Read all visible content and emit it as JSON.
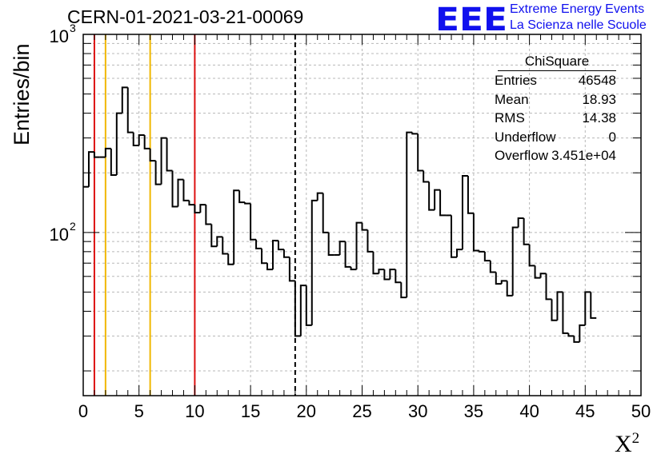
{
  "header": {
    "run_title": "CERN-01-2021-03-21-00069",
    "logo_letters": "EEE",
    "logo_line1": "Extreme Energy Events",
    "logo_line2": "La Scienza nelle Scuole",
    "logo_color": "#1010ee"
  },
  "stats_box": {
    "title": "ChiSquare",
    "rows": [
      {
        "label": "Entries",
        "value": "46548"
      },
      {
        "label": "Mean",
        "value": "18.93"
      },
      {
        "label": "RMS",
        "value": "14.38"
      },
      {
        "label": "Underflow",
        "value": "0"
      },
      {
        "label": "Overflow",
        "value": "3.451e+04"
      }
    ]
  },
  "chart_data": {
    "type": "histogram",
    "title": "CERN-01-2021-03-21-00069",
    "xlabel": "X",
    "xlabel_sup": "2",
    "ylabel": "Entries/bin",
    "xlim": [
      0,
      50
    ],
    "ylim": [
      15,
      1000
    ],
    "yscale": "log",
    "grid": true,
    "bin_width": 0.5,
    "x_ticks": [
      "0",
      "5",
      "10",
      "15",
      "20",
      "25",
      "30",
      "35",
      "40",
      "45",
      "50"
    ],
    "y_tick_labels": [
      {
        "base": "10",
        "exp": "2",
        "value": 100
      },
      {
        "base": "10",
        "exp": "3",
        "value": 1000
      }
    ],
    "values": [
      170,
      255,
      240,
      240,
      265,
      195,
      400,
      540,
      320,
      275,
      310,
      265,
      230,
      175,
      300,
      205,
      135,
      185,
      145,
      138,
      126,
      138,
      110,
      85,
      95,
      78,
      69,
      163,
      142,
      140,
      92,
      83,
      70,
      65,
      91,
      82,
      75,
      57,
      30,
      54,
      34,
      145,
      158,
      100,
      77,
      77,
      90,
      67,
      65,
      112,
      103,
      80,
      62,
      65,
      58,
      65,
      56,
      47,
      320,
      315,
      205,
      180,
      130,
      164,
      122,
      122,
      75,
      82,
      193,
      125,
      81,
      80,
      72,
      63,
      55,
      57,
      48,
      106,
      118,
      87,
      68,
      59,
      62,
      46,
      36,
      50,
      31,
      30,
      28,
      34,
      50,
      37
    ],
    "vertical_lines": [
      {
        "x": 1,
        "color": "#dd1111",
        "style": "solid"
      },
      {
        "x": 10,
        "color": "#dd1111",
        "style": "solid"
      },
      {
        "x": 2,
        "color": "#f0b800",
        "style": "solid"
      },
      {
        "x": 6,
        "color": "#f0b800",
        "style": "solid"
      },
      {
        "x": 19,
        "color": "#000000",
        "style": "dashed"
      }
    ]
  }
}
